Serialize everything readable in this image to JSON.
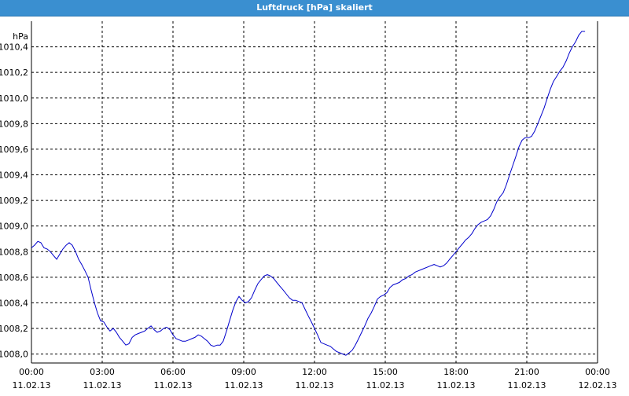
{
  "window": {
    "title": "Luftdruck [hPa] skaliert"
  },
  "chart_data": {
    "type": "line",
    "title": "Luftdruck [hPa] skaliert",
    "xlabel": "",
    "ylabel": "hPa",
    "ylim": [
      1007.93,
      1010.6
    ],
    "grid": true,
    "y_ticks": [
      {
        "value": 1008.0,
        "label": "1008,0"
      },
      {
        "value": 1008.2,
        "label": "1008,2"
      },
      {
        "value": 1008.4,
        "label": "1008,4"
      },
      {
        "value": 1008.6,
        "label": "1008,6"
      },
      {
        "value": 1008.8,
        "label": "1008,8"
      },
      {
        "value": 1009.0,
        "label": "1009,0"
      },
      {
        "value": 1009.2,
        "label": "1009,2"
      },
      {
        "value": 1009.4,
        "label": "1009,4"
      },
      {
        "value": 1009.6,
        "label": "1009,6"
      },
      {
        "value": 1009.8,
        "label": "1009,8"
      },
      {
        "value": 1010.0,
        "label": "1010,0"
      },
      {
        "value": 1010.2,
        "label": "1010,2"
      },
      {
        "value": 1010.4,
        "label": "1010,4"
      }
    ],
    "x_ticks": [
      {
        "value": 0,
        "time": "00:00",
        "date": "11.02.13"
      },
      {
        "value": 3,
        "time": "03:00",
        "date": "11.02.13"
      },
      {
        "value": 6,
        "time": "06:00",
        "date": "11.02.13"
      },
      {
        "value": 9,
        "time": "09:00",
        "date": "11.02.13"
      },
      {
        "value": 12,
        "time": "12:00",
        "date": "11.02.13"
      },
      {
        "value": 15,
        "time": "15:00",
        "date": "11.02.13"
      },
      {
        "value": 18,
        "time": "18:00",
        "date": "11.02.13"
      },
      {
        "value": 21,
        "time": "21:00",
        "date": "11.02.13"
      },
      {
        "value": 24,
        "time": "00:00",
        "date": "12.02.13"
      }
    ],
    "xlim": [
      0,
      24
    ],
    "series": [
      {
        "name": "",
        "color": "#0000cc",
        "points": [
          [
            0.0,
            1008.83
          ],
          [
            0.13,
            1008.85
          ],
          [
            0.27,
            1008.88
          ],
          [
            0.4,
            1008.87
          ],
          [
            0.53,
            1008.83
          ],
          [
            0.67,
            1008.82
          ],
          [
            0.8,
            1008.8
          ],
          [
            0.93,
            1008.77
          ],
          [
            1.07,
            1008.74
          ],
          [
            1.2,
            1008.78
          ],
          [
            1.33,
            1008.82
          ],
          [
            1.47,
            1008.85
          ],
          [
            1.6,
            1008.87
          ],
          [
            1.73,
            1008.85
          ],
          [
            1.87,
            1008.8
          ],
          [
            2.0,
            1008.74
          ],
          [
            2.13,
            1008.7
          ],
          [
            2.27,
            1008.65
          ],
          [
            2.4,
            1008.6
          ],
          [
            2.53,
            1008.5
          ],
          [
            2.67,
            1008.4
          ],
          [
            2.8,
            1008.32
          ],
          [
            2.93,
            1008.26
          ],
          [
            3.07,
            1008.25
          ],
          [
            3.2,
            1008.21
          ],
          [
            3.33,
            1008.18
          ],
          [
            3.47,
            1008.2
          ],
          [
            3.6,
            1008.17
          ],
          [
            3.73,
            1008.13
          ],
          [
            3.87,
            1008.1
          ],
          [
            4.0,
            1008.07
          ],
          [
            4.13,
            1008.08
          ],
          [
            4.27,
            1008.13
          ],
          [
            4.4,
            1008.15
          ],
          [
            4.53,
            1008.16
          ],
          [
            4.67,
            1008.17
          ],
          [
            4.8,
            1008.18
          ],
          [
            4.93,
            1008.2
          ],
          [
            5.07,
            1008.22
          ],
          [
            5.2,
            1008.19
          ],
          [
            5.33,
            1008.17
          ],
          [
            5.47,
            1008.18
          ],
          [
            5.6,
            1008.2
          ],
          [
            5.73,
            1008.21
          ],
          [
            5.87,
            1008.19
          ],
          [
            6.0,
            1008.15
          ],
          [
            6.13,
            1008.12
          ],
          [
            6.27,
            1008.11
          ],
          [
            6.4,
            1008.1
          ],
          [
            6.53,
            1008.1
          ],
          [
            6.67,
            1008.11
          ],
          [
            6.8,
            1008.12
          ],
          [
            6.93,
            1008.13
          ],
          [
            7.07,
            1008.15
          ],
          [
            7.2,
            1008.14
          ],
          [
            7.33,
            1008.12
          ],
          [
            7.47,
            1008.1
          ],
          [
            7.6,
            1008.07
          ],
          [
            7.73,
            1008.06
          ],
          [
            7.87,
            1008.07
          ],
          [
            8.0,
            1008.07
          ],
          [
            8.13,
            1008.1
          ],
          [
            8.27,
            1008.18
          ],
          [
            8.4,
            1008.26
          ],
          [
            8.53,
            1008.34
          ],
          [
            8.67,
            1008.41
          ],
          [
            8.8,
            1008.45
          ],
          [
            8.93,
            1008.42
          ],
          [
            9.07,
            1008.4
          ],
          [
            9.2,
            1008.41
          ],
          [
            9.33,
            1008.44
          ],
          [
            9.47,
            1008.5
          ],
          [
            9.6,
            1008.55
          ],
          [
            9.73,
            1008.58
          ],
          [
            9.87,
            1008.61
          ],
          [
            10.0,
            1008.62
          ],
          [
            10.13,
            1008.61
          ],
          [
            10.27,
            1008.59
          ],
          [
            10.4,
            1008.56
          ],
          [
            10.53,
            1008.53
          ],
          [
            10.67,
            1008.5
          ],
          [
            10.8,
            1008.47
          ],
          [
            10.93,
            1008.44
          ],
          [
            11.07,
            1008.42
          ],
          [
            11.2,
            1008.42
          ],
          [
            11.33,
            1008.41
          ],
          [
            11.47,
            1008.4
          ],
          [
            11.6,
            1008.35
          ],
          [
            11.73,
            1008.3
          ],
          [
            11.87,
            1008.25
          ],
          [
            12.0,
            1008.2
          ],
          [
            12.13,
            1008.15
          ],
          [
            12.27,
            1008.09
          ],
          [
            12.4,
            1008.08
          ],
          [
            12.53,
            1008.07
          ],
          [
            12.67,
            1008.06
          ],
          [
            12.8,
            1008.04
          ],
          [
            12.93,
            1008.02
          ],
          [
            13.07,
            1008.01
          ],
          [
            13.2,
            1008.0
          ],
          [
            13.33,
            1007.99
          ],
          [
            13.47,
            1008.01
          ],
          [
            13.6,
            1008.03
          ],
          [
            13.73,
            1008.07
          ],
          [
            13.87,
            1008.12
          ],
          [
            14.0,
            1008.17
          ],
          [
            14.13,
            1008.22
          ],
          [
            14.27,
            1008.28
          ],
          [
            14.4,
            1008.32
          ],
          [
            14.53,
            1008.37
          ],
          [
            14.67,
            1008.43
          ],
          [
            14.8,
            1008.45
          ],
          [
            14.93,
            1008.46
          ],
          [
            15.07,
            1008.48
          ],
          [
            15.2,
            1008.52
          ],
          [
            15.33,
            1008.54
          ],
          [
            15.47,
            1008.55
          ],
          [
            15.6,
            1008.56
          ],
          [
            15.73,
            1008.58
          ],
          [
            15.87,
            1008.59
          ],
          [
            16.0,
            1008.61
          ],
          [
            16.13,
            1008.62
          ],
          [
            16.27,
            1008.64
          ],
          [
            16.4,
            1008.65
          ],
          [
            16.53,
            1008.66
          ],
          [
            16.67,
            1008.67
          ],
          [
            16.8,
            1008.68
          ],
          [
            16.93,
            1008.69
          ],
          [
            17.07,
            1008.7
          ],
          [
            17.2,
            1008.69
          ],
          [
            17.33,
            1008.68
          ],
          [
            17.47,
            1008.69
          ],
          [
            17.6,
            1008.71
          ],
          [
            17.73,
            1008.74
          ],
          [
            17.87,
            1008.77
          ],
          [
            18.0,
            1008.8
          ],
          [
            18.13,
            1008.83
          ],
          [
            18.27,
            1008.86
          ],
          [
            18.4,
            1008.89
          ],
          [
            18.53,
            1008.91
          ],
          [
            18.67,
            1008.94
          ],
          [
            18.8,
            1008.98
          ],
          [
            18.93,
            1009.01
          ],
          [
            19.07,
            1009.03
          ],
          [
            19.2,
            1009.04
          ],
          [
            19.33,
            1009.05
          ],
          [
            19.47,
            1009.08
          ],
          [
            19.6,
            1009.13
          ],
          [
            19.73,
            1009.19
          ],
          [
            19.87,
            1009.23
          ],
          [
            20.0,
            1009.26
          ],
          [
            20.13,
            1009.32
          ],
          [
            20.27,
            1009.4
          ],
          [
            20.4,
            1009.47
          ],
          [
            20.53,
            1009.54
          ],
          [
            20.67,
            1009.62
          ],
          [
            20.8,
            1009.67
          ],
          [
            20.93,
            1009.69
          ],
          [
            21.07,
            1009.69
          ],
          [
            21.2,
            1009.7
          ],
          [
            21.33,
            1009.74
          ],
          [
            21.47,
            1009.8
          ],
          [
            21.6,
            1009.86
          ],
          [
            21.73,
            1009.92
          ],
          [
            21.87,
            1010.0
          ],
          [
            22.0,
            1010.07
          ],
          [
            22.13,
            1010.13
          ],
          [
            22.27,
            1010.17
          ],
          [
            22.4,
            1010.21
          ],
          [
            22.53,
            1010.24
          ],
          [
            22.67,
            1010.29
          ],
          [
            22.8,
            1010.35
          ],
          [
            22.93,
            1010.4
          ],
          [
            23.07,
            1010.44
          ],
          [
            23.2,
            1010.49
          ],
          [
            23.33,
            1010.52
          ],
          [
            23.47,
            1010.52
          ]
        ]
      }
    ]
  }
}
